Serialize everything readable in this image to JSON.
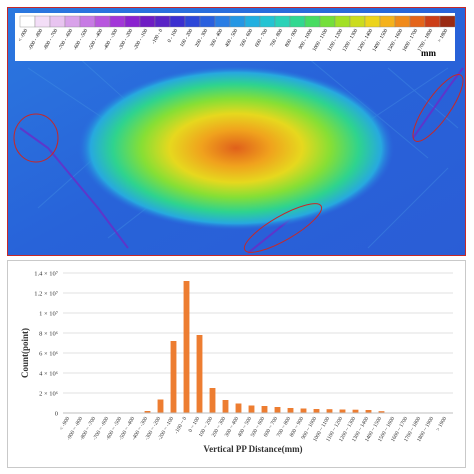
{
  "map": {
    "unit": "mm",
    "legend_labels": [
      "< -900",
      "-900 - -800",
      "-800 - -700",
      "-700 - -600",
      "-600 - -500",
      "-500 - -400",
      "-400 - -300",
      "-300 - -200",
      "-200 - -100",
      "-100 - 0",
      "0 - 100",
      "100 - 200",
      "200 - 300",
      "300 - 400",
      "400 - 500",
      "500 - 600",
      "600 - 700",
      "700 - 800",
      "800 - 900",
      "900 - 1000",
      "1000 - 1100",
      "1100 - 1200",
      "1200 - 1300",
      "1300 - 1400",
      "1400 - 1500",
      "1500 - 1600",
      "1600 - 1700",
      "1700 - 1800",
      "> 1800"
    ],
    "legend_colors": [
      "#ffffff",
      "#f3def7",
      "#e8c4f0",
      "#d9a2ea",
      "#c77ae4",
      "#b856de",
      "#a236d8",
      "#8a22cf",
      "#6f1dc4",
      "#5a24c6",
      "#3b2fd0",
      "#2d47d8",
      "#2a60de",
      "#2a7de4",
      "#2597e4",
      "#22afe0",
      "#25c4d3",
      "#2bd2b8",
      "#32d890",
      "#48dc62",
      "#74df3a",
      "#a2e025",
      "#cbdc1f",
      "#ecd41c",
      "#f5b21c",
      "#f08a1a",
      "#e4641a",
      "#cc3e18",
      "#9a2a12"
    ]
  },
  "chart_data": {
    "type": "bar",
    "categories": [
      "< -900",
      "-900 ~ -800",
      "-800 ~ -700",
      "-700 ~ -600",
      "-600 ~ -500",
      "-500 ~ -400",
      "-400 ~ -300",
      "-300 ~ -200",
      "-200 ~ -100",
      "-100 ~ 0",
      "0 ~ 100",
      "100 ~ 200",
      "200 ~ 300",
      "300 ~ 400",
      "400 ~ 500",
      "500 ~ 600",
      "600 ~ 700",
      "700 ~ 800",
      "800 ~ 900",
      "900 ~ 1000",
      "1000 ~ 1100",
      "1100 ~ 1200",
      "1200 ~ 1300",
      "1300 ~ 1400",
      "1400 ~ 1500",
      "1500 ~ 1600",
      "1600 ~ 1700",
      "1700 ~ 1800",
      "1800 ~ 1900",
      "> 1900"
    ],
    "values": [
      0,
      0,
      0,
      0,
      0,
      30000,
      200000,
      1350000,
      7200000,
      13200000,
      7800000,
      2500000,
      1300000,
      950000,
      750000,
      700000,
      600000,
      500000,
      450000,
      400000,
      380000,
      350000,
      330000,
      300000,
      180000,
      0,
      0,
      0,
      0,
      0
    ],
    "ylim": [
      0,
      14000000
    ],
    "yticks": [
      0,
      2000000,
      4000000,
      6000000,
      8000000,
      10000000,
      12000000,
      14000000
    ],
    "ytick_labels": [
      "0",
      "2 × 10⁶",
      "4 × 10⁶",
      "6 × 10⁶",
      "8 × 10⁶",
      "1 × 10⁷",
      "1.2 × 10⁷",
      "1.4 × 10⁷"
    ],
    "xlabel": "Vertical PP Distance(mm)",
    "ylabel": "Count(point)",
    "bar_color": "#ed7d31",
    "grid": true
  }
}
